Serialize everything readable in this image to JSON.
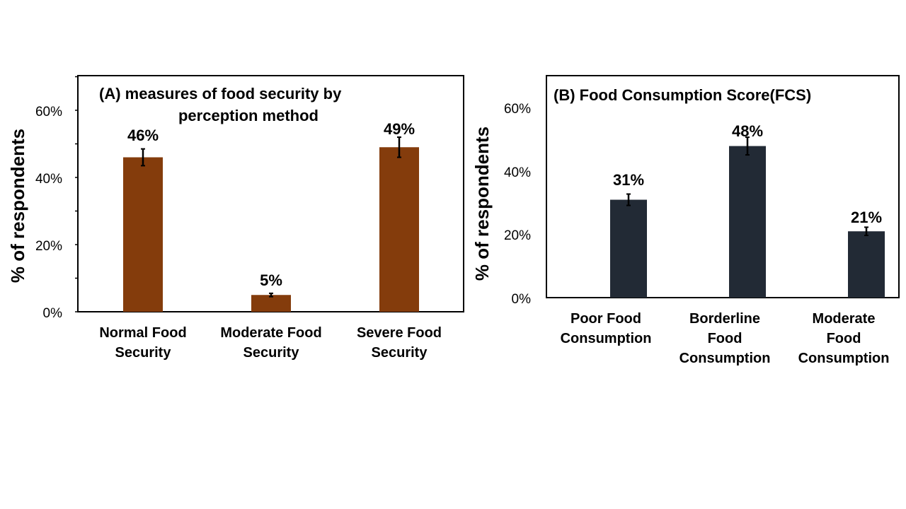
{
  "chart_data": [
    {
      "type": "bar",
      "title_line1": "(A)  measures of food security by",
      "title_line2": "perception method",
      "xlabel": "",
      "ylabel": "% of respondents",
      "ylim": [
        0,
        70
      ],
      "yticks": [
        "0%",
        "20%",
        "40%",
        "60%"
      ],
      "categories_line1": [
        "Normal Food",
        "Moderate Food",
        "Severe Food"
      ],
      "categories_line2": [
        "Security",
        "Security",
        "Security"
      ],
      "values": [
        46,
        5,
        49
      ],
      "errors": [
        2.5,
        0.5,
        3
      ],
      "data_labels": [
        "46%",
        "5%",
        "49%"
      ],
      "bar_color": "#843c0c"
    },
    {
      "type": "bar",
      "title": "(B)  Food Consumption Score(FCS)",
      "xlabel": "",
      "ylabel": "% of respondents",
      "ylim": [
        0,
        70
      ],
      "yticks": [
        "0%",
        "20%",
        "40%",
        "60%"
      ],
      "categories_line1": [
        "Poor Food",
        "Borderline",
        "Moderate"
      ],
      "categories_line2": [
        "Consumption",
        "Food",
        "Food"
      ],
      "categories_line3": [
        "",
        "Consumption",
        "Consumption"
      ],
      "values": [
        31,
        48,
        21
      ],
      "errors": [
        1.8,
        2.8,
        1.3
      ],
      "data_labels": [
        "31%",
        "48%",
        "21%"
      ],
      "bar_color": "#222a35"
    }
  ]
}
